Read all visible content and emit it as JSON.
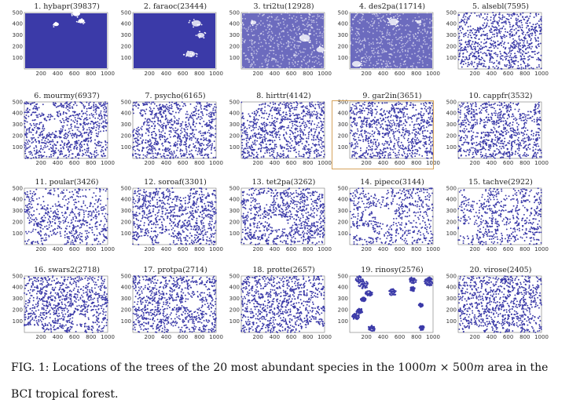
{
  "chart_data": {
    "type": "scatter",
    "layout_cols": 5,
    "layout_rows": 4,
    "xlim": [
      0,
      1000
    ],
    "ylim": [
      0,
      500
    ],
    "xticks": [
      "200",
      "400",
      "600",
      "800",
      "1000"
    ],
    "yticks": [
      "100",
      "200",
      "300",
      "400",
      "500"
    ],
    "point_color": "#3b3aa8",
    "panels": [
      {
        "title": "1. hybapr(39837)",
        "count": 39837,
        "pattern": "dense"
      },
      {
        "title": "2. faraoc(23444)",
        "count": 23444,
        "pattern": "dense"
      },
      {
        "title": "3. tri2tu(12928)",
        "count": 12928,
        "pattern": "dense"
      },
      {
        "title": "4. des2pa(11714)",
        "count": 11714,
        "pattern": "dense"
      },
      {
        "title": "5. alsebl(7595)",
        "count": 7595,
        "pattern": "medium"
      },
      {
        "title": "6. mourmy(6937)",
        "count": 6937,
        "pattern": "medium"
      },
      {
        "title": "7. psycho(6165)",
        "count": 6165,
        "pattern": "medium"
      },
      {
        "title": "8. hirttr(4142)",
        "count": 4142,
        "pattern": "medium"
      },
      {
        "title": "9. gar2in(3651)",
        "count": 3651,
        "pattern": "medium"
      },
      {
        "title": "10. cappfr(3532)",
        "count": 3532,
        "pattern": "medium"
      },
      {
        "title": "11. poular(3426)",
        "count": 3426,
        "pattern": "patchy"
      },
      {
        "title": "12. soroaf(3301)",
        "count": 3301,
        "pattern": "medium"
      },
      {
        "title": "13. tet2pa(3262)",
        "count": 3262,
        "pattern": "medium"
      },
      {
        "title": "14. pipeco(3144)",
        "count": 3144,
        "pattern": "patchy"
      },
      {
        "title": "15. tachve(2922)",
        "count": 2922,
        "pattern": "patchy"
      },
      {
        "title": "16. swars2(2718)",
        "count": 2718,
        "pattern": "medium"
      },
      {
        "title": "17. protpa(2714)",
        "count": 2714,
        "pattern": "medium"
      },
      {
        "title": "18. protte(2657)",
        "count": 2657,
        "pattern": "medium"
      },
      {
        "title": "19. rinosy(2576)",
        "count": 2576,
        "pattern": "clustered"
      },
      {
        "title": "20. virose(2405)",
        "count": 2405,
        "pattern": "medium"
      }
    ]
  },
  "caption": {
    "prefix": "FIG. 1: Locations of the trees of the 20 most abundant species in the ",
    "dim1": "1000",
    "unit1": "m",
    "times": " × ",
    "dim2": "500",
    "unit2": "m",
    "suffix": " area in the BCI tropical forest."
  }
}
